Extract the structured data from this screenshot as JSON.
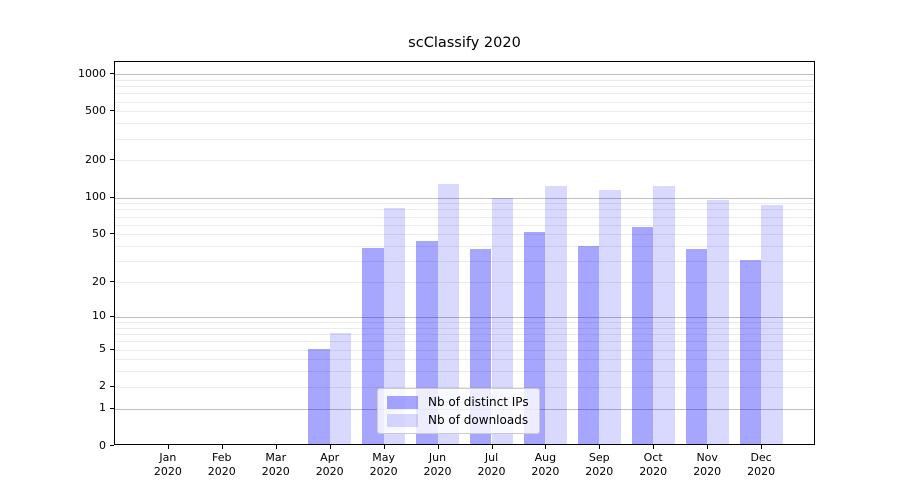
{
  "chart_data": {
    "type": "bar",
    "title": "scClassify 2020",
    "categories": [
      {
        "month": "Jan",
        "year": "2020"
      },
      {
        "month": "Feb",
        "year": "2020"
      },
      {
        "month": "Mar",
        "year": "2020"
      },
      {
        "month": "Apr",
        "year": "2020"
      },
      {
        "month": "May",
        "year": "2020"
      },
      {
        "month": "Jun",
        "year": "2020"
      },
      {
        "month": "Jul",
        "year": "2020"
      },
      {
        "month": "Aug",
        "year": "2020"
      },
      {
        "month": "Sep",
        "year": "2020"
      },
      {
        "month": "Oct",
        "year": "2020"
      },
      {
        "month": "Nov",
        "year": "2020"
      },
      {
        "month": "Dec",
        "year": "2020"
      }
    ],
    "series": [
      {
        "name": "Nb of distinct IPs",
        "color": "#a6a6ff",
        "color_rgba": "rgba(0,0,255,0.35)",
        "values": [
          0,
          0,
          0,
          5,
          38,
          43,
          37,
          51,
          39,
          56,
          37,
          30
        ]
      },
      {
        "name": "Nb of downloads",
        "color": "#d9d9ff",
        "color_rgba": "rgba(0,0,255,0.15)",
        "values": [
          0,
          0,
          0,
          7,
          81,
          127,
          97,
          122,
          113,
          121,
          94,
          85
        ]
      }
    ],
    "yscale": "log1p",
    "yticks": [
      0,
      1,
      2,
      5,
      10,
      20,
      50,
      100,
      200,
      500,
      1000
    ],
    "major_gridlines": [
      1,
      10,
      100,
      1000
    ],
    "ylim": [
      0,
      1250
    ],
    "grid": {
      "major": true,
      "minor": true
    },
    "legend_position": "lower center"
  }
}
